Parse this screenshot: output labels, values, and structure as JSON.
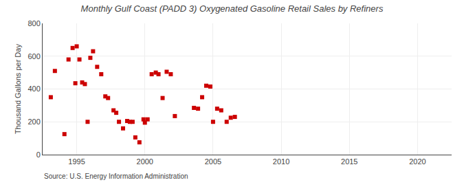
{
  "chart_data": {
    "type": "scatter",
    "title": "Monthly Gulf Coast (PADD 3) Oxygenated Gasoline Retail Sales by Refiners",
    "y_label": "Thousand Gallons per Day",
    "annotations": [
      "Source: U.S. Energy Information Administration"
    ],
    "x": [
      1993.1,
      1993.4,
      1994.1,
      1994.4,
      1994.7,
      1994.9,
      1995.0,
      1995.2,
      1995.4,
      1995.6,
      1995.8,
      1996.0,
      1996.2,
      1996.5,
      1996.8,
      1997.1,
      1997.3,
      1997.7,
      1997.9,
      1998.1,
      1998.4,
      1998.7,
      1998.9,
      1999.1,
      1999.3,
      1999.6,
      1999.9,
      2000.0,
      2000.2,
      2000.5,
      2000.8,
      2001.0,
      2001.3,
      2001.6,
      2001.9,
      2002.2,
      2003.6,
      2003.9,
      2004.2,
      2004.5,
      2004.8,
      2005.0,
      2005.3,
      2005.6,
      2006.0,
      2006.3,
      2006.6
    ],
    "values": [
      350,
      510,
      125,
      580,
      650,
      435,
      660,
      580,
      440,
      430,
      200,
      590,
      630,
      535,
      490,
      355,
      345,
      270,
      255,
      200,
      160,
      205,
      200,
      200,
      105,
      75,
      215,
      195,
      215,
      490,
      500,
      490,
      345,
      505,
      490,
      235,
      285,
      280,
      350,
      420,
      415,
      200,
      280,
      270,
      200,
      225,
      230
    ],
    "color": "#cc0000",
    "marker": "square",
    "xlim": [
      1992.5,
      2022.5
    ],
    "ylim": [
      0,
      800
    ],
    "xticks": [
      1995,
      2000,
      2005,
      2010,
      2015,
      2020
    ],
    "yticks": [
      0,
      200,
      400,
      600,
      800
    ],
    "grid": true
  }
}
